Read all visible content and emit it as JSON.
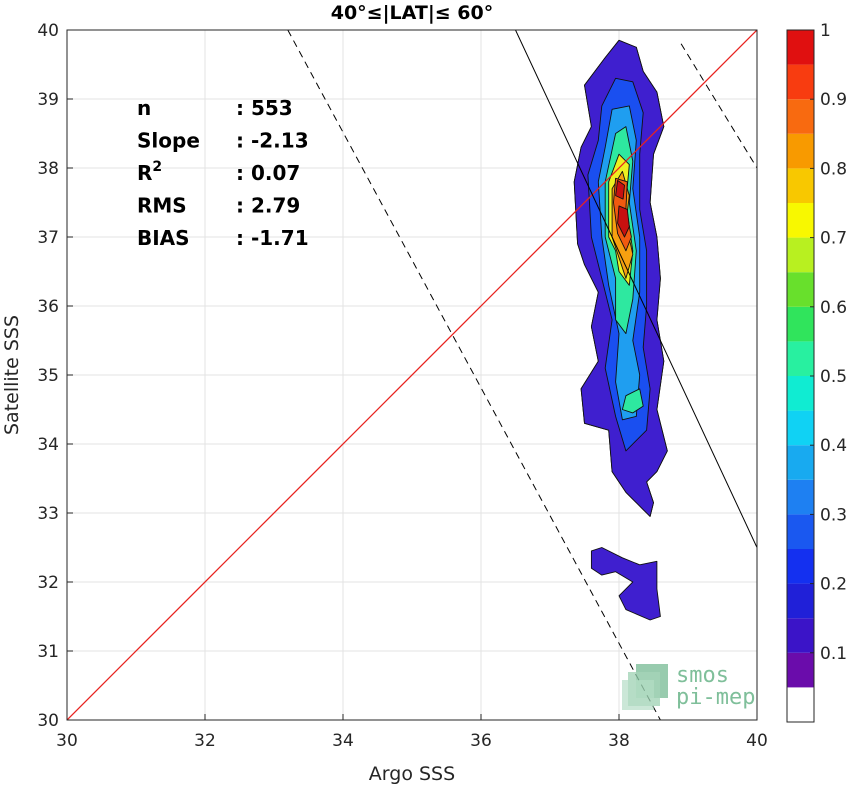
{
  "chart_data": {
    "type": "heatmap",
    "title": "40°≤|LAT|≤ 60°",
    "xlabel": "Argo SSS",
    "ylabel": "Satellite SSS",
    "xlim": [
      30,
      40
    ],
    "ylim": [
      30,
      40
    ],
    "xticks": [
      "30",
      "32",
      "34",
      "36",
      "38",
      "40"
    ],
    "yticks": [
      "30",
      "31",
      "32",
      "33",
      "34",
      "35",
      "36",
      "37",
      "38",
      "39",
      "40"
    ],
    "grid": true,
    "stats": [
      {
        "label": "n",
        "value": ": 553"
      },
      {
        "label": "Slope",
        "value": ": -2.13"
      },
      {
        "label": "R",
        "sup": "2",
        "value": ": 0.07"
      },
      {
        "label": "RMS",
        "value": ": 2.79"
      },
      {
        "label": "BIAS",
        "value": ": -1.71"
      }
    ],
    "identity_line": {
      "x": [
        30,
        40
      ],
      "y": [
        30,
        40
      ],
      "color": "#e8231f"
    },
    "regression_line": {
      "x": [
        36.5,
        40
      ],
      "y": [
        40,
        32.5
      ],
      "style": "solid"
    },
    "confidence_lines": [
      {
        "x": [
          33.2,
          38.6
        ],
        "y": [
          40,
          30
        ],
        "style": "dashed"
      },
      {
        "x": [
          38.9,
          40
        ],
        "y": [
          39.8,
          38
        ],
        "style": "dashed"
      }
    ],
    "density_contours": [
      {
        "level": 0.05,
        "color": "#ffffff",
        "polygon": [
          [
            37.4,
            36.9
          ],
          [
            37.35,
            37.8
          ],
          [
            37.45,
            38.3
          ],
          [
            37.6,
            38.6
          ],
          [
            37.5,
            39.2
          ],
          [
            37.8,
            39.6
          ],
          [
            38.0,
            39.85
          ],
          [
            38.25,
            39.75
          ],
          [
            38.35,
            39.4
          ],
          [
            38.55,
            39.1
          ],
          [
            38.65,
            38.6
          ],
          [
            38.5,
            38.2
          ],
          [
            38.45,
            37.5
          ],
          [
            38.55,
            37.0
          ],
          [
            38.6,
            36.4
          ],
          [
            38.55,
            35.8
          ],
          [
            38.65,
            35.2
          ],
          [
            38.55,
            34.5
          ],
          [
            38.7,
            33.9
          ],
          [
            38.55,
            33.6
          ],
          [
            38.4,
            33.45
          ],
          [
            38.5,
            33.15
          ],
          [
            38.45,
            32.95
          ],
          [
            38.3,
            33.1
          ],
          [
            38.1,
            33.3
          ],
          [
            37.9,
            33.6
          ],
          [
            37.85,
            34.2
          ],
          [
            37.5,
            34.3
          ],
          [
            37.45,
            34.8
          ],
          [
            37.7,
            35.2
          ],
          [
            37.6,
            35.7
          ],
          [
            37.7,
            36.2
          ],
          [
            37.5,
            36.6
          ]
        ]
      },
      {
        "level": 0.05,
        "color": "#3f1fcf",
        "polygon": [
          [
            37.4,
            36.9
          ],
          [
            37.35,
            37.8
          ],
          [
            37.45,
            38.3
          ],
          [
            37.6,
            38.6
          ],
          [
            37.5,
            39.2
          ],
          [
            37.8,
            39.6
          ],
          [
            38.0,
            39.85
          ],
          [
            38.25,
            39.75
          ],
          [
            38.35,
            39.4
          ],
          [
            38.55,
            39.1
          ],
          [
            38.65,
            38.6
          ],
          [
            38.5,
            38.2
          ],
          [
            38.45,
            37.5
          ],
          [
            38.55,
            37.0
          ],
          [
            38.6,
            36.4
          ],
          [
            38.55,
            35.8
          ],
          [
            38.65,
            35.2
          ],
          [
            38.55,
            34.5
          ],
          [
            38.7,
            33.9
          ],
          [
            38.55,
            33.6
          ],
          [
            38.4,
            33.45
          ],
          [
            38.5,
            33.15
          ],
          [
            38.45,
            32.95
          ],
          [
            38.3,
            33.1
          ],
          [
            38.1,
            33.3
          ],
          [
            37.9,
            33.6
          ],
          [
            37.85,
            34.2
          ],
          [
            37.5,
            34.3
          ],
          [
            37.45,
            34.8
          ],
          [
            37.7,
            35.2
          ],
          [
            37.6,
            35.7
          ],
          [
            37.7,
            36.2
          ],
          [
            37.5,
            36.6
          ]
        ]
      },
      {
        "level": 0.05,
        "color": "#3f1fcf",
        "polygon": [
          [
            37.6,
            32.45
          ],
          [
            37.75,
            32.5
          ],
          [
            38.05,
            32.35
          ],
          [
            38.3,
            32.25
          ],
          [
            38.55,
            32.3
          ],
          [
            38.55,
            31.9
          ],
          [
            38.6,
            31.5
          ],
          [
            38.45,
            31.45
          ],
          [
            38.1,
            31.6
          ],
          [
            38.0,
            31.8
          ],
          [
            38.2,
            32.0
          ],
          [
            37.95,
            32.15
          ],
          [
            37.75,
            32.1
          ],
          [
            37.6,
            32.2
          ]
        ]
      },
      {
        "level": 0.2,
        "color": "#1a4ff0",
        "polygon": [
          [
            37.6,
            37.0
          ],
          [
            37.55,
            37.9
          ],
          [
            37.7,
            38.4
          ],
          [
            37.75,
            38.9
          ],
          [
            37.95,
            39.3
          ],
          [
            38.2,
            39.25
          ],
          [
            38.35,
            38.8
          ],
          [
            38.3,
            38.2
          ],
          [
            38.3,
            37.4
          ],
          [
            38.4,
            36.8
          ],
          [
            38.4,
            36.0
          ],
          [
            38.35,
            35.4
          ],
          [
            38.45,
            34.8
          ],
          [
            38.4,
            34.2
          ],
          [
            38.1,
            33.9
          ],
          [
            37.95,
            34.4
          ],
          [
            37.8,
            35.1
          ],
          [
            37.9,
            35.8
          ],
          [
            37.75,
            36.4
          ]
        ]
      },
      {
        "level": 0.3,
        "color": "#1f9ef0",
        "polygon": [
          [
            37.75,
            37.0
          ],
          [
            37.7,
            37.8
          ],
          [
            37.8,
            38.3
          ],
          [
            37.9,
            38.85
          ],
          [
            38.15,
            38.9
          ],
          [
            38.25,
            38.4
          ],
          [
            38.2,
            37.7
          ],
          [
            38.3,
            37.0
          ],
          [
            38.3,
            36.2
          ],
          [
            38.2,
            35.5
          ],
          [
            38.3,
            35.0
          ],
          [
            38.25,
            34.4
          ],
          [
            38.05,
            34.35
          ],
          [
            37.95,
            34.9
          ],
          [
            38.0,
            35.6
          ],
          [
            37.85,
            36.3
          ]
        ]
      },
      {
        "level": 0.45,
        "color": "#2ee8a0",
        "polygon": [
          [
            37.8,
            37.0
          ],
          [
            37.8,
            37.8
          ],
          [
            37.95,
            38.5
          ],
          [
            38.1,
            38.6
          ],
          [
            38.2,
            38.1
          ],
          [
            38.15,
            37.5
          ],
          [
            38.25,
            36.8
          ],
          [
            38.2,
            36.1
          ],
          [
            38.1,
            35.6
          ],
          [
            37.95,
            35.8
          ],
          [
            37.95,
            36.4
          ]
        ]
      },
      {
        "level": 0.45,
        "color": "#2ee8a0",
        "polygon": [
          [
            38.1,
            34.7
          ],
          [
            38.3,
            34.8
          ],
          [
            38.35,
            34.55
          ],
          [
            38.2,
            34.45
          ],
          [
            38.05,
            34.5
          ]
        ]
      },
      {
        "level": 0.6,
        "color": "#eef020",
        "polygon": [
          [
            37.85,
            37.0
          ],
          [
            37.85,
            37.8
          ],
          [
            38.0,
            38.2
          ],
          [
            38.15,
            38.05
          ],
          [
            38.1,
            37.5
          ],
          [
            38.2,
            36.8
          ],
          [
            38.15,
            36.3
          ],
          [
            38.0,
            36.5
          ],
          [
            37.95,
            36.8
          ]
        ]
      },
      {
        "level": 0.7,
        "color": "#f7a010",
        "polygon": [
          [
            37.9,
            37.0
          ],
          [
            37.9,
            37.7
          ],
          [
            38.05,
            37.95
          ],
          [
            38.15,
            37.6
          ],
          [
            38.1,
            37.2
          ],
          [
            38.2,
            36.75
          ],
          [
            38.1,
            36.4
          ],
          [
            38.0,
            36.7
          ]
        ]
      },
      {
        "level": 0.8,
        "color": "#f05a10",
        "polygon": [
          [
            37.92,
            37.5
          ],
          [
            37.95,
            37.85
          ],
          [
            38.12,
            37.8
          ],
          [
            38.1,
            37.4
          ],
          [
            38.18,
            37.0
          ],
          [
            38.1,
            36.8
          ],
          [
            37.98,
            37.05
          ]
        ]
      },
      {
        "level": 0.95,
        "color": "#c81010",
        "polygon": [
          [
            37.95,
            37.6
          ],
          [
            37.98,
            37.82
          ],
          [
            38.08,
            37.75
          ],
          [
            38.06,
            37.55
          ]
        ]
      },
      {
        "level": 0.95,
        "color": "#c81010",
        "polygon": [
          [
            37.98,
            37.2
          ],
          [
            38.0,
            37.45
          ],
          [
            38.12,
            37.4
          ],
          [
            38.15,
            37.15
          ],
          [
            38.08,
            37.0
          ]
        ]
      }
    ],
    "colorbar": {
      "ticks": [
        "0.1",
        "0.2",
        "0.3",
        "0.4",
        "0.5",
        "0.6",
        "0.7",
        "0.8",
        "0.9",
        "1"
      ],
      "tick_values": [
        0.1,
        0.2,
        0.3,
        0.4,
        0.5,
        0.6,
        0.7,
        0.8,
        0.9,
        1.0
      ],
      "range": [
        0,
        1.0
      ],
      "levels": [
        0,
        0.05,
        0.1,
        0.15,
        0.2,
        0.25,
        0.3,
        0.35,
        0.4,
        0.45,
        0.5,
        0.55,
        0.6,
        0.65,
        0.7,
        0.75,
        0.8,
        0.85,
        0.9,
        0.95,
        1.0
      ],
      "colors": [
        "#ffffff",
        "#6a0cab",
        "#3b14c8",
        "#2020d8",
        "#1430f0",
        "#1a58f0",
        "#1e80f2",
        "#18aaf0",
        "#10d2f4",
        "#10ecd2",
        "#28f0a0",
        "#30e45c",
        "#68e02c",
        "#b8f020",
        "#f8f800",
        "#f8c800",
        "#f89a00",
        "#f86a10",
        "#f83c10",
        "#e01010",
        "#a00808"
      ]
    },
    "watermark": [
      "smos",
      "pi-mep"
    ]
  }
}
